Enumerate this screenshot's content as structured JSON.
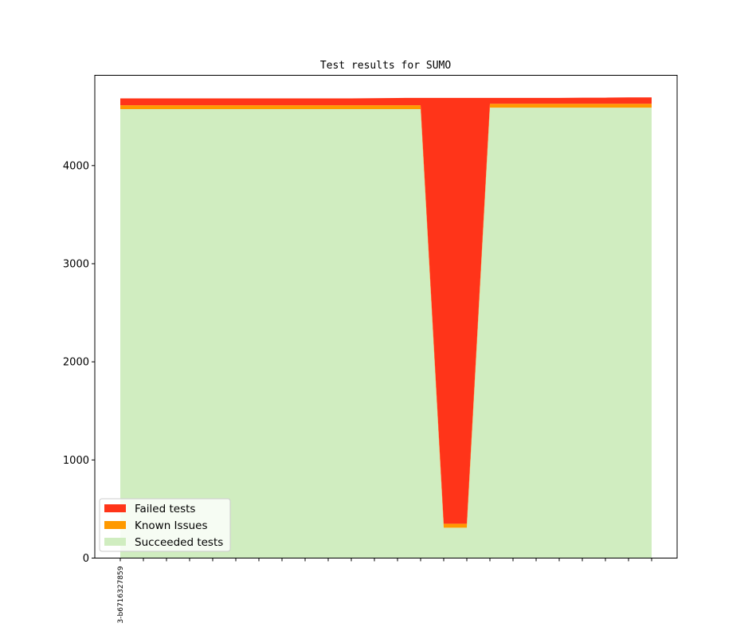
{
  "chart_data": {
    "type": "area",
    "title": "Test results for SUMO",
    "xlabel": "",
    "ylabel": "",
    "ylim": [
      0,
      4920
    ],
    "yticks": [
      0,
      1000,
      2000,
      3000,
      4000
    ],
    "grid": false,
    "legend_position": "lower-left",
    "x_tick_count": 24,
    "x_labels": [
      {
        "index": 0,
        "label": "3-b6716327859"
      }
    ],
    "series": [
      {
        "name": "Succeeded tests",
        "color": "#d0edc0",
        "values": [
          4575,
          4575,
          4575,
          4575,
          4575,
          4575,
          4575,
          4575,
          4575,
          4575,
          4575,
          4575,
          4575,
          4575,
          310,
          310,
          4590,
          4590,
          4590,
          4590,
          4590,
          4590,
          4590,
          4590
        ]
      },
      {
        "name": "Known Issues",
        "color": "#ff9900",
        "values": [
          40,
          40,
          40,
          40,
          40,
          40,
          40,
          40,
          40,
          40,
          40,
          40,
          40,
          40,
          40,
          40,
          40,
          40,
          40,
          40,
          40,
          40,
          40,
          40
        ]
      },
      {
        "name": "Failed tests",
        "color": "#ff3419",
        "values": [
          70,
          70,
          70,
          70,
          70,
          70,
          70,
          70,
          70,
          70,
          70,
          72,
          74,
          75,
          4340,
          4340,
          60,
          60,
          60,
          60,
          62,
          62,
          65,
          65
        ]
      }
    ],
    "legend_order": [
      "Failed tests",
      "Known Issues",
      "Succeeded tests"
    ]
  }
}
